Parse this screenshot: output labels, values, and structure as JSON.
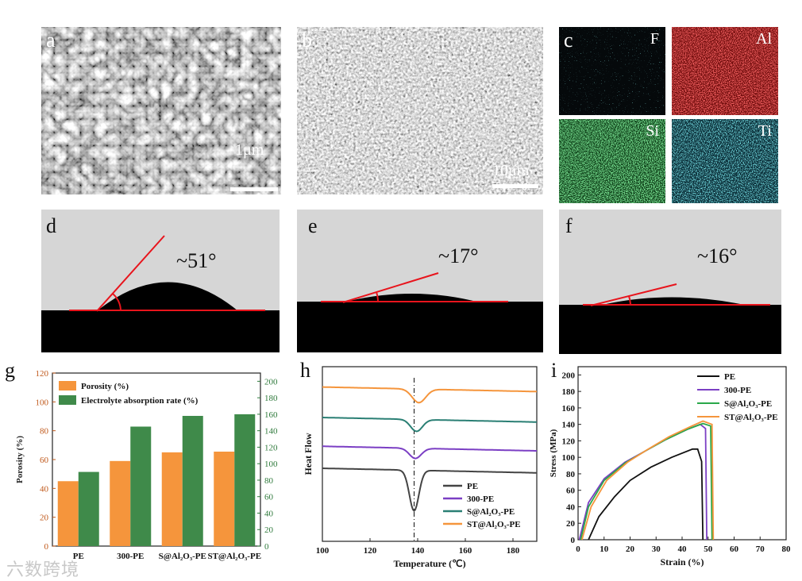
{
  "panels": {
    "a": {
      "label": "a",
      "scale_text": "1μm"
    },
    "b": {
      "label": "b",
      "scale_text": "10μm"
    },
    "c": {
      "label": "c",
      "maps": [
        {
          "element": "F",
          "color": "#3fd6d6",
          "bg": "#050a0c"
        },
        {
          "element": "Al",
          "color": "#d42020",
          "bg": "#5a0606"
        },
        {
          "element": "Si",
          "color": "#2fb84a",
          "bg": "#0a3a12"
        },
        {
          "element": "Ti",
          "color": "#2ec8d0",
          "bg": "#083038"
        }
      ]
    },
    "d": {
      "label": "d",
      "angle": "~51°"
    },
    "e": {
      "label": "e",
      "angle": "~17°"
    },
    "f": {
      "label": "f",
      "angle": "~16°"
    },
    "g": {
      "label": "g"
    },
    "h": {
      "label": "h"
    },
    "i": {
      "label": "i"
    }
  },
  "watermark": "六数跨境",
  "chart_data": [
    {
      "id": "g",
      "type": "bar",
      "categories": [
        "PE",
        "300-PE",
        "S@Al₂O₃-PE",
        "ST@Al₂O₃-PE"
      ],
      "series": [
        {
          "name": "Porosity (%)",
          "axis": "left",
          "color": "#f5953c",
          "values": [
            45,
            59,
            65,
            65.5
          ]
        },
        {
          "name": "Electrolyte absorption rate (%)",
          "axis": "right",
          "color": "#3f8a4a",
          "values": [
            90,
            145,
            158,
            160
          ]
        }
      ],
      "ylabel": "Porosity (%)",
      "y2label": "Electrolyte absorption rate (%)",
      "ylim": [
        0,
        120
      ],
      "y2lim": [
        0,
        210
      ],
      "yticks": [
        0,
        20,
        40,
        60,
        80,
        100,
        120
      ],
      "y2ticks": [
        0,
        20,
        40,
        60,
        80,
        100,
        120,
        140,
        160,
        180,
        200
      ]
    },
    {
      "id": "h",
      "type": "line",
      "xlabel": "Temperature (℃)",
      "ylabel": "Heat Flow",
      "xlim": [
        100,
        190
      ],
      "xticks": [
        100,
        120,
        140,
        160,
        180
      ],
      "peak_line": 138.5,
      "series": [
        {
          "name": "PE",
          "color": "#444444",
          "baseline": 0,
          "depth": -24,
          "peak": 138.5,
          "halfwidth": 2.8
        },
        {
          "name": "300-PE",
          "color": "#7b3fc4",
          "baseline": 13,
          "depth": -6,
          "peak": 139,
          "halfwidth": 3.5
        },
        {
          "name": "S@Al₂O₃-PE",
          "color": "#2a7f74",
          "baseline": 30,
          "depth": -7,
          "peak": 139.5,
          "halfwidth": 3.5
        },
        {
          "name": "ST@Al₂O₃-PE",
          "color": "#f5953c",
          "baseline": 48,
          "depth": -8,
          "peak": 140.5,
          "halfwidth": 4
        }
      ]
    },
    {
      "id": "i",
      "type": "line",
      "xlabel": "Strain (%)",
      "ylabel": "Stress (MPa)",
      "xlim": [
        0,
        80
      ],
      "ylim": [
        0,
        210
      ],
      "xticks": [
        0,
        10,
        20,
        30,
        40,
        50,
        60,
        70,
        80
      ],
      "yticks": [
        0,
        20,
        40,
        60,
        80,
        100,
        120,
        140,
        160,
        180,
        200
      ],
      "series": [
        {
          "name": "PE",
          "color": "#111111",
          "points": [
            [
              4,
              0
            ],
            [
              8,
              28
            ],
            [
              14,
              52
            ],
            [
              20,
              72
            ],
            [
              28,
              88
            ],
            [
              36,
              100
            ],
            [
              44,
              110
            ],
            [
              46,
              110
            ],
            [
              47.5,
              95
            ],
            [
              48,
              0
            ]
          ]
        },
        {
          "name": "300-PE",
          "color": "#7b3fc4",
          "points": [
            [
              0.5,
              0
            ],
            [
              4,
              45
            ],
            [
              10,
              74
            ],
            [
              18,
              94
            ],
            [
              26,
              108
            ],
            [
              34,
              122
            ],
            [
              42,
              134
            ],
            [
              47,
              140
            ],
            [
              49,
              135
            ],
            [
              49.5,
              0
            ]
          ]
        },
        {
          "name": "S@Al₂O₃-PE",
          "color": "#2aa84a",
          "points": [
            [
              1,
              0
            ],
            [
              4,
              40
            ],
            [
              10,
              72
            ],
            [
              18,
              93
            ],
            [
              26,
              108
            ],
            [
              34,
              122
            ],
            [
              42,
              134
            ],
            [
              48,
              141
            ],
            [
              51,
              138
            ],
            [
              51.5,
              0
            ]
          ]
        },
        {
          "name": "ST@Al₂O₃-PE",
          "color": "#f5953c",
          "points": [
            [
              1.5,
              0
            ],
            [
              5,
              40
            ],
            [
              11,
              72
            ],
            [
              19,
              94
            ],
            [
              27,
              110
            ],
            [
              35,
              125
            ],
            [
              43,
              137
            ],
            [
              48,
              144
            ],
            [
              51.5,
              140
            ],
            [
              52,
              0
            ]
          ]
        }
      ]
    }
  ]
}
